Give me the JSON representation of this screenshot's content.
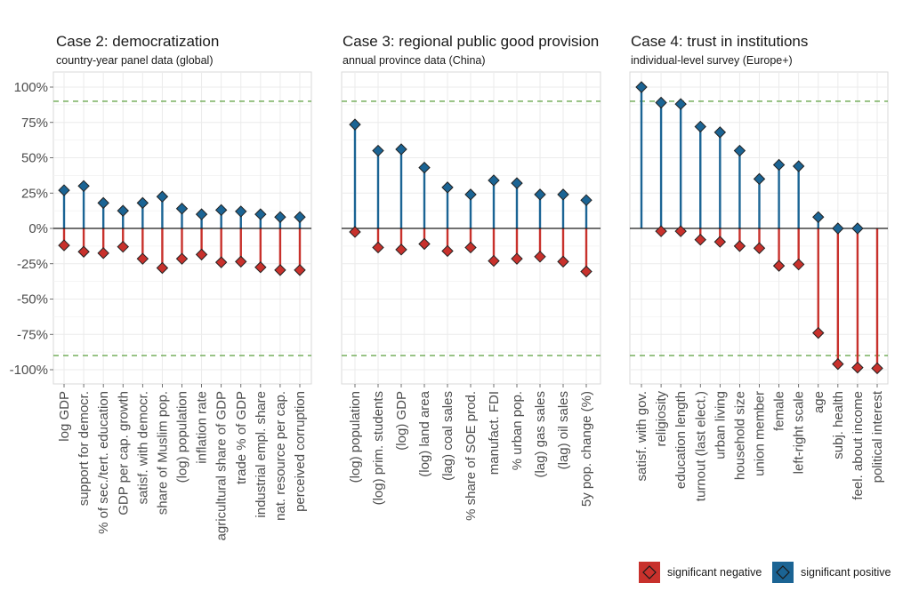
{
  "chart_data": [
    {
      "type": "lollipop",
      "title": "Case 2: democratization",
      "subtitle": "country-year panel data (global)",
      "ylim": [
        -110,
        110
      ],
      "yticks": [
        100,
        75,
        50,
        25,
        0,
        -25,
        -50,
        -75,
        -100
      ],
      "ytick_labels": [
        "100%",
        "75%",
        "50%",
        "25%",
        "0%",
        "-25%",
        "-50%",
        "-75%",
        "-100%"
      ],
      "threshold_lines": [
        90,
        -90
      ],
      "categories": [
        "log GDP",
        "support for democr.",
        "% of sec./tert. education",
        "GDP per cap. growth",
        "satisf. with democr.",
        "share of Muslim pop.",
        "(log) population",
        "inflation rate",
        "agricultural share of GDP",
        "trade % of GDP",
        "industrial empl. share",
        "nat. resource per cap.",
        "perceived corruption"
      ],
      "series": [
        {
          "name": "significant positive",
          "values": [
            27,
            30,
            18,
            12.5,
            18,
            22.5,
            14,
            10,
            13,
            12,
            10,
            8,
            8
          ]
        },
        {
          "name": "significant negative",
          "values": [
            -12,
            -16.5,
            -17.5,
            -13,
            -21.5,
            -28,
            -21.5,
            -18.5,
            -24,
            -23.5,
            -27.5,
            -29.5,
            -29.5
          ]
        }
      ]
    },
    {
      "type": "lollipop",
      "title": "Case 3: regional public good provision",
      "subtitle": "annual province data (China)",
      "ylim": [
        -110,
        110
      ],
      "threshold_lines": [
        90,
        -90
      ],
      "categories": [
        "(log) population",
        "(log) prim. students",
        "(log) GDP",
        "(log) land area",
        "(lag) coal sales",
        "% share of SOE prod.",
        "manufact. FDI",
        "% urban pop.",
        "(lag) gas sales",
        "(lag) oil sales",
        "5y pop. change (%)"
      ],
      "series": [
        {
          "name": "significant positive",
          "values": [
            73.5,
            55,
            56,
            43,
            29,
            24,
            34,
            32,
            24,
            24,
            20
          ]
        },
        {
          "name": "significant negative",
          "values": [
            -2.5,
            -13.5,
            -15,
            -11,
            -16,
            -13.5,
            -23,
            -21.5,
            -20,
            -23.5,
            -30.5
          ]
        }
      ]
    },
    {
      "type": "lollipop",
      "title": "Case 4: trust in institutions",
      "subtitle": "individual-level survey (Europe+)",
      "ylim": [
        -110,
        110
      ],
      "threshold_lines": [
        90,
        -90
      ],
      "categories": [
        "satisf. with gov.",
        "religiosity",
        "education length",
        "turnout (last elect.)",
        "urban living",
        "household size",
        "union member",
        "female",
        "left-right scale",
        "age",
        "subj. health",
        "feel. about income",
        "political interest"
      ],
      "series": [
        {
          "name": "significant positive",
          "values": [
            100,
            89,
            88,
            72,
            68,
            55,
            35,
            45,
            44,
            8,
            0,
            0,
            null
          ]
        },
        {
          "name": "significant negative",
          "values": [
            null,
            -2,
            -2,
            -8,
            -9.5,
            -12.5,
            -14,
            -26.5,
            -25.5,
            -74,
            -96,
            -98.5,
            -99
          ]
        }
      ]
    }
  ],
  "legend": {
    "position": "bottom-right",
    "items": [
      {
        "label": "significant negative",
        "color": "#c8312c"
      },
      {
        "label": "significant positive",
        "color": "#1b6494"
      }
    ]
  },
  "colors": {
    "positive": "#1b6494",
    "negative": "#c8312c",
    "threshold": "#6aa84f",
    "zero_line": "#1a1a1a",
    "grid": "#ebebeb",
    "panel_border": "#d9d9d9"
  }
}
